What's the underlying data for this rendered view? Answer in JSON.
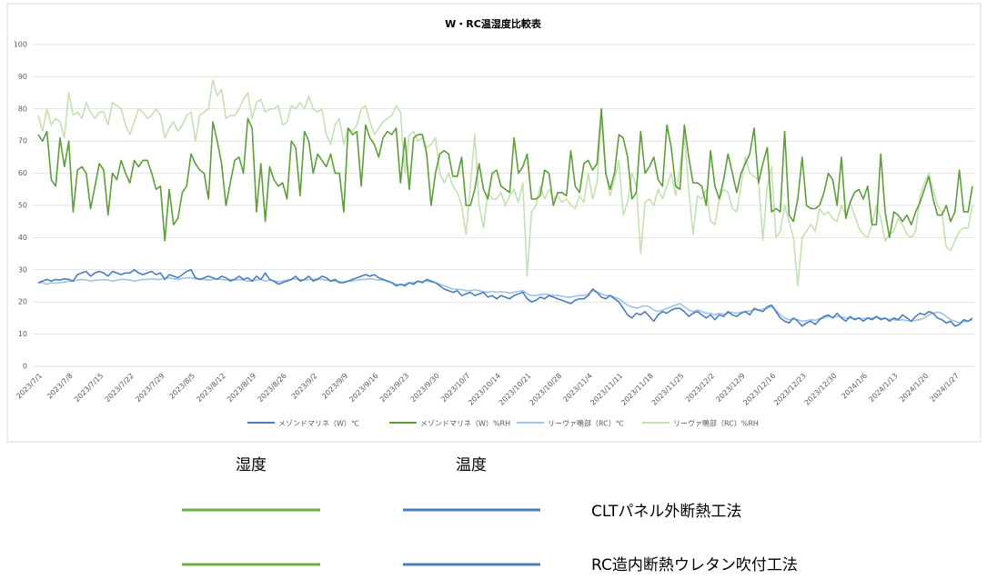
{
  "chart_data": {
    "type": "line",
    "title": "W・RC温湿度比較表",
    "categories": [
      "2023/7/1",
      null,
      null,
      null,
      null,
      null,
      null,
      "2023/7/8",
      null,
      null,
      null,
      null,
      null,
      null,
      "2023/7/15",
      null,
      null,
      null,
      null,
      null,
      null,
      "2023/7/22",
      null,
      null,
      null,
      null,
      null,
      null,
      "2023/7/29",
      null,
      null,
      null,
      null,
      null,
      null,
      "2023/8/5",
      null,
      null,
      null,
      null,
      null,
      null,
      "2023/8/12",
      null,
      null,
      null,
      null,
      null,
      null,
      "2023/8/19",
      null,
      null,
      null,
      null,
      null,
      null,
      "2023/8/26",
      null,
      null,
      null,
      null,
      null,
      null,
      "2023/9/2",
      null,
      null,
      null,
      null,
      null,
      null,
      "2023/9/9",
      null,
      null,
      null,
      null,
      null,
      null,
      "2023/9/16",
      null,
      null,
      null,
      null,
      null,
      null,
      "2023/9/23",
      null,
      null,
      null,
      null,
      null,
      null,
      "2023/9/30",
      null,
      null,
      null,
      null,
      null,
      null,
      "2023/10/7",
      null,
      null,
      null,
      null,
      null,
      null,
      "2023/10/14",
      null,
      null,
      null,
      null,
      null,
      null,
      "2023/10/21",
      null,
      null,
      null,
      null,
      null,
      null,
      "2023/10/28",
      null,
      null,
      null,
      null,
      null,
      null,
      "2023/11/4",
      null,
      null,
      null,
      null,
      null,
      null,
      "2023/11/11",
      null,
      null,
      null,
      null,
      null,
      null,
      "2023/11/18",
      null,
      null,
      null,
      null,
      null,
      null,
      "2023/11/25",
      null,
      null,
      null,
      null,
      null,
      null,
      "2023/12/2",
      null,
      null,
      null,
      null,
      null,
      null,
      "2023/12/9",
      null,
      null,
      null,
      null,
      null,
      null,
      "2023/12/16",
      null,
      null,
      null,
      null,
      null,
      null,
      "2023/12/23",
      null,
      null,
      null,
      null,
      null,
      null,
      "2023/12/30",
      null,
      null,
      null,
      null,
      null,
      null,
      "2024/1/6",
      null,
      null,
      null,
      null,
      null,
      null,
      "2024/1/13",
      null,
      null,
      null,
      null,
      null,
      null,
      "2024/1/20",
      null,
      null,
      null,
      null,
      null,
      null,
      "2024/1/27",
      null,
      null,
      null,
      null
    ],
    "series": [
      {
        "name": "メゾンドマリネ（W）℃",
        "color": "#4a7ebb",
        "values": [
          26,
          26.5,
          27,
          26.5,
          27,
          26.8,
          27.2,
          27,
          26.5,
          28.5,
          29,
          29.5,
          28,
          29,
          29.5,
          29,
          28,
          29.5,
          29,
          28.5,
          29,
          29,
          30,
          29,
          28.5,
          29,
          29.5,
          28.5,
          29,
          27,
          28.5,
          28,
          27.5,
          28.5,
          29.5,
          30,
          27.5,
          27,
          27.5,
          28,
          27.5,
          27,
          28,
          27.5,
          26.5,
          27,
          28,
          27,
          27.5,
          26.5,
          28,
          27,
          29,
          27,
          26.5,
          25.5,
          26,
          26.5,
          27,
          28,
          26.5,
          27,
          28,
          26.5,
          27,
          28,
          27.5,
          26.5,
          27,
          26,
          26,
          26.5,
          27,
          27.5,
          28,
          28.5,
          28,
          28.5,
          27.5,
          27,
          26.5,
          26,
          25,
          25.5,
          25,
          26,
          25.5,
          26.5,
          26,
          27,
          26.5,
          26,
          25,
          24,
          23.5,
          23,
          23.5,
          22,
          22.5,
          23,
          22,
          22.5,
          23,
          21.5,
          22,
          21,
          22,
          21.5,
          21,
          22,
          22.5,
          23,
          21,
          20,
          20.5,
          21.5,
          21,
          22,
          21.5,
          21,
          20.5,
          20,
          19.5,
          20.5,
          21,
          21,
          22,
          24,
          23,
          21.5,
          21,
          22,
          21,
          20,
          18,
          16,
          15,
          16.5,
          16,
          17,
          15.5,
          14,
          16,
          17,
          16.5,
          17.5,
          18,
          18,
          17,
          15.5,
          16.5,
          17,
          16,
          15,
          16,
          14.5,
          16,
          15.5,
          17,
          16,
          15.5,
          16.5,
          17,
          16,
          18,
          17.5,
          17,
          18.5,
          19,
          17,
          15,
          14,
          13.5,
          15,
          14,
          12.5,
          13.5,
          14,
          13,
          14.5,
          15.5,
          16,
          15,
          16.5,
          15,
          14,
          15.5,
          14.5,
          15,
          14,
          15,
          14.5,
          15.5,
          14.5,
          15,
          14,
          15,
          14.5,
          16,
          15,
          14,
          15.5,
          16.5,
          16,
          17,
          16.5,
          15,
          14.5,
          13.5,
          14,
          12.5,
          13,
          14.5,
          14,
          15
        ]
      },
      {
        "name": "メゾンドマリネ（W）%RH",
        "color": "#5e9e3a",
        "values": [
          72,
          70,
          73,
          58,
          56,
          71,
          62,
          70,
          48,
          61,
          62,
          60,
          49,
          56,
          63,
          61,
          47,
          60,
          58,
          64,
          60,
          57,
          64,
          62,
          64,
          64,
          60,
          55,
          56,
          39,
          55,
          44,
          46,
          54,
          56,
          66,
          63,
          61,
          60,
          52,
          76,
          70,
          63,
          50,
          57,
          64,
          65,
          60,
          77,
          74,
          48,
          63,
          45,
          62,
          58,
          56,
          57,
          52,
          70,
          68,
          53,
          73,
          70,
          60,
          66,
          64,
          62,
          66,
          60,
          60,
          48,
          74,
          72,
          73,
          56,
          75,
          71,
          69,
          65,
          71,
          73,
          72,
          74,
          57,
          71,
          55,
          71,
          72,
          72,
          66,
          50,
          60,
          66,
          67,
          66,
          59,
          59,
          65,
          50,
          50,
          55,
          63,
          55,
          52,
          60,
          61,
          56,
          55,
          54,
          71,
          60,
          62,
          66,
          52,
          52,
          53,
          61,
          60,
          50,
          54,
          54,
          53,
          67,
          56,
          54,
          63,
          64,
          61,
          63,
          80,
          60,
          55,
          60,
          72,
          71,
          65,
          52,
          54,
          73,
          60,
          62,
          65,
          58,
          56,
          75,
          68,
          56,
          55,
          75,
          65,
          57,
          57,
          56,
          50,
          67,
          56,
          52,
          58,
          66,
          60,
          54,
          60,
          63,
          66,
          74,
          57,
          63,
          68,
          48,
          49,
          48,
          73,
          47,
          45,
          52,
          65,
          50,
          49,
          49,
          50,
          54,
          60,
          58,
          50,
          65,
          46,
          51,
          54,
          55,
          52,
          56,
          44,
          44,
          66,
          48,
          40,
          48,
          47,
          45,
          47,
          44,
          48,
          51,
          55,
          59,
          52,
          47,
          47,
          50,
          45,
          48,
          61,
          48,
          48,
          56
        ]
      },
      {
        "name": "リーヴァ鴨部（RC）℃",
        "color": "#9dc3e6",
        "values": [
          26,
          26,
          25.5,
          26,
          25.8,
          26,
          26.2,
          26.5,
          26.5,
          26.8,
          27,
          26.8,
          26.5,
          26.7,
          26.8,
          27,
          26.8,
          26.5,
          26.7,
          27,
          27,
          26.8,
          26.5,
          26.7,
          27,
          27,
          27.2,
          27,
          27,
          27.3,
          27.5,
          27.2,
          27,
          27.3,
          27.5,
          27.5,
          27.2,
          27,
          27,
          26.8,
          27,
          27.2,
          27,
          26.8,
          27,
          26.8,
          27,
          26.8,
          26.5,
          26.5,
          26.8,
          27,
          26.5,
          26.8,
          26.5,
          26.3,
          26.5,
          26.8,
          27,
          27.2,
          27,
          26.8,
          27,
          27,
          27.2,
          27,
          26.8,
          26.5,
          26.5,
          26.3,
          26.2,
          26.5,
          26.5,
          26.8,
          27,
          27,
          27.2,
          27,
          26.8,
          26.8,
          26.5,
          26,
          25.5,
          25.3,
          25.5,
          26,
          26,
          26.5,
          26.3,
          26.5,
          26.2,
          26,
          25.5,
          25,
          24.5,
          24,
          24,
          23.8,
          23.5,
          23.5,
          23.8,
          23.5,
          23.2,
          23,
          23.3,
          23,
          23.2,
          23,
          22.8,
          23,
          23.3,
          23.5,
          22.5,
          22,
          22,
          22.3,
          22.5,
          22.3,
          22,
          22,
          21.8,
          21.5,
          21.5,
          21.8,
          22,
          22,
          22.5,
          23.5,
          23,
          22.5,
          22,
          22,
          21.5,
          21,
          20,
          19,
          18.5,
          18,
          18.5,
          18.8,
          18.5,
          17.5,
          17,
          17.5,
          18,
          18.5,
          19,
          19.5,
          18.5,
          17.5,
          17,
          17.5,
          17,
          16.5,
          16.5,
          16,
          16.5,
          16.2,
          16.5,
          16.8,
          16.5,
          16.8,
          17,
          17.2,
          17.5,
          17.5,
          17.8,
          18,
          18.5,
          17.5,
          16,
          15,
          14.5,
          14.8,
          14.5,
          14,
          14.2,
          14.5,
          14.3,
          14.8,
          15,
          15.5,
          15.2,
          15.5,
          15.3,
          15,
          15,
          14.8,
          15,
          14.8,
          15,
          15,
          15.2,
          15,
          14.8,
          14.7,
          14.5,
          14.3,
          14.5,
          14.2,
          14,
          14.3,
          14.5,
          15,
          16,
          16.5,
          16.8,
          16.5,
          15.5,
          14.5,
          14,
          13.5,
          13.8,
          14,
          14.5
        ]
      },
      {
        "name": "リーヴァ鴨部（RC）%RH",
        "color": "#c5e0b4",
        "values": [
          78,
          73,
          80,
          75,
          77,
          76,
          71,
          85,
          78,
          79,
          77,
          82,
          79,
          77,
          79,
          79,
          75,
          82,
          81,
          80,
          75,
          72,
          76,
          80,
          79,
          77,
          78,
          80,
          78,
          71,
          74,
          76,
          73,
          75,
          78,
          79,
          70,
          78,
          79,
          80,
          89,
          84,
          86,
          77,
          78,
          78,
          80,
          83,
          85,
          77,
          82,
          83,
          79,
          80,
          80,
          81,
          75,
          76,
          81,
          80,
          82,
          80,
          84,
          80,
          79,
          80,
          72,
          69,
          75,
          77,
          69,
          74,
          73,
          75,
          80,
          81,
          76,
          72,
          74,
          76,
          77,
          78,
          81,
          79,
          60,
          72,
          73,
          70,
          71,
          68,
          69,
          71,
          60,
          57,
          60,
          56,
          54,
          50,
          41,
          56,
          72,
          50,
          43,
          54,
          52,
          52,
          54,
          50,
          53,
          55,
          51,
          57,
          28,
          48,
          50,
          56,
          52,
          55,
          52,
          53,
          51,
          52,
          50,
          49,
          53,
          51,
          60,
          52,
          57,
          77,
          60,
          53,
          58,
          64,
          47,
          51,
          60,
          56,
          35,
          51,
          52,
          50,
          55,
          52,
          56,
          60,
          53,
          62,
          72,
          55,
          41,
          53,
          52,
          55,
          45,
          44,
          52,
          55,
          54,
          49,
          48,
          56,
          65,
          60,
          59,
          58,
          39,
          56,
          62,
          40,
          42,
          50,
          45,
          40,
          25,
          40,
          42,
          44,
          42,
          49,
          47,
          48,
          46,
          45,
          50,
          47,
          51,
          47,
          43,
          41,
          40,
          44,
          50,
          46,
          39,
          41,
          42,
          46,
          44,
          41,
          40,
          42,
          53,
          57,
          60,
          55,
          50,
          48,
          37,
          36,
          39,
          42,
          43,
          43,
          50
        ]
      }
    ],
    "ylim": [
      0,
      100
    ],
    "yticks": [
      0,
      10,
      20,
      30,
      40,
      50,
      60,
      70,
      80,
      90,
      100
    ],
    "grid": true,
    "legend": "bottom"
  },
  "legend_table": {
    "headers": [
      "湿度",
      "温度"
    ],
    "rows": [
      "CLTパネル外断熱工法",
      "RC造内断熱ウレタン吹付工法"
    ]
  }
}
